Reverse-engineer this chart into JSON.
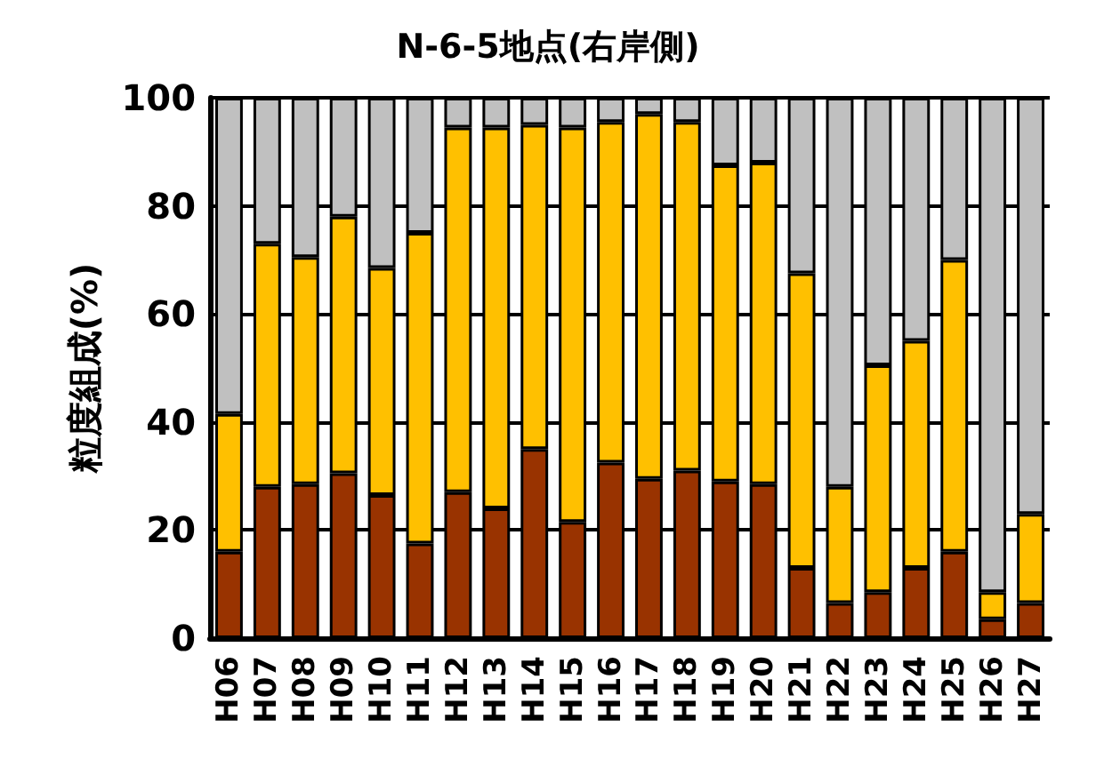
{
  "chart_data": {
    "type": "bar",
    "title": "N-6-5地点(右岸側)",
    "ylabel": "粒度組成(%)",
    "stacked": true,
    "grid": "y",
    "categories": [
      "H06",
      "H07",
      "H08",
      "H09",
      "H10",
      "H11",
      "H12",
      "H13",
      "H14",
      "H15",
      "H16",
      "H17",
      "H18",
      "H19",
      "H20",
      "H21",
      "H22",
      "H23",
      "H24",
      "H25",
      "H26",
      "H27"
    ],
    "series": [
      {
        "color": "#993300",
        "values": [
          16,
          28,
          28.5,
          30.5,
          26.5,
          17.5,
          27,
          24,
          35,
          21.5,
          32.5,
          29.5,
          31,
          29,
          28.5,
          13,
          6.5,
          8.5,
          13,
          16,
          3.5,
          6.5
        ]
      },
      {
        "color": "#ffc000",
        "values": [
          25.5,
          45,
          42,
          47.5,
          42,
          57.5,
          67.5,
          70.5,
          60,
          73,
          63,
          67.5,
          64.5,
          58.5,
          59.5,
          54.5,
          21.5,
          42,
          42,
          54,
          5,
          16.5
        ]
      },
      {
        "color": "#c0c0c0",
        "values": [
          58.5,
          27,
          29.5,
          22,
          31.5,
          25,
          5.5,
          5.5,
          5,
          5.5,
          4.5,
          3,
          4.5,
          12.5,
          12,
          32.5,
          72,
          49.5,
          45,
          30,
          91.5,
          77
        ]
      }
    ],
    "ylim": [
      0,
      100
    ],
    "yticks": [
      0,
      20,
      40,
      60,
      80,
      100
    ]
  }
}
